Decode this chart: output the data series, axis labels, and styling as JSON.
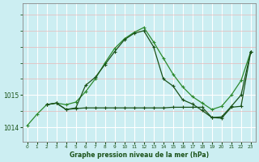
{
  "title": "Graphe pression niveau de la mer (hPa)",
  "bg_color": "#cceef2",
  "grid_color_major": "#ffffff",
  "grid_color_minor": "#aaddE4",
  "line_color_bright": "#2d8a2d",
  "line_color_dark": "#1a5218",
  "xlim": [
    -0.5,
    23.5
  ],
  "ylim": [
    1013.55,
    1017.85
  ],
  "yticks": [
    1014,
    1015
  ],
  "xticks": [
    0,
    1,
    2,
    3,
    4,
    5,
    6,
    7,
    8,
    9,
    10,
    11,
    12,
    13,
    14,
    15,
    16,
    17,
    18,
    19,
    20,
    21,
    22,
    23
  ],
  "series1_x": [
    0,
    1,
    2,
    3,
    4,
    5,
    6,
    7,
    8,
    9,
    10,
    11,
    12,
    13,
    14,
    15,
    16,
    17,
    18,
    19,
    20,
    21,
    22,
    23
  ],
  "series1_y": [
    1014.05,
    1014.4,
    1014.7,
    1014.75,
    1014.7,
    1014.78,
    1015.1,
    1015.5,
    1016.0,
    1016.45,
    1016.75,
    1016.95,
    1017.1,
    1016.65,
    1016.15,
    1015.65,
    1015.25,
    1014.95,
    1014.75,
    1014.55,
    1014.65,
    1015.0,
    1015.45,
    1016.35
  ],
  "series2_x": [
    2,
    3,
    4,
    5,
    6,
    7,
    8,
    9,
    10,
    11,
    12,
    13,
    14,
    15,
    16,
    17,
    18,
    19,
    20,
    21,
    22,
    23
  ],
  "series2_y": [
    1014.7,
    1014.75,
    1014.55,
    1014.58,
    1014.6,
    1014.6,
    1014.6,
    1014.6,
    1014.6,
    1014.6,
    1014.6,
    1014.6,
    1014.6,
    1014.62,
    1014.62,
    1014.62,
    1014.62,
    1014.3,
    1014.28,
    1014.62,
    1014.65,
    1016.35
  ],
  "series3_x": [
    2,
    3,
    4,
    5,
    6,
    7,
    8,
    9,
    10,
    11,
    12,
    13,
    14,
    15,
    16,
    17,
    18,
    19,
    20,
    21,
    22,
    23
  ],
  "series3_y": [
    1014.7,
    1014.75,
    1014.55,
    1014.6,
    1015.3,
    1015.55,
    1015.95,
    1016.35,
    1016.72,
    1016.92,
    1017.0,
    1016.5,
    1015.5,
    1015.28,
    1014.85,
    1014.72,
    1014.52,
    1014.3,
    1014.32,
    1014.65,
    1015.0,
    1016.35
  ]
}
